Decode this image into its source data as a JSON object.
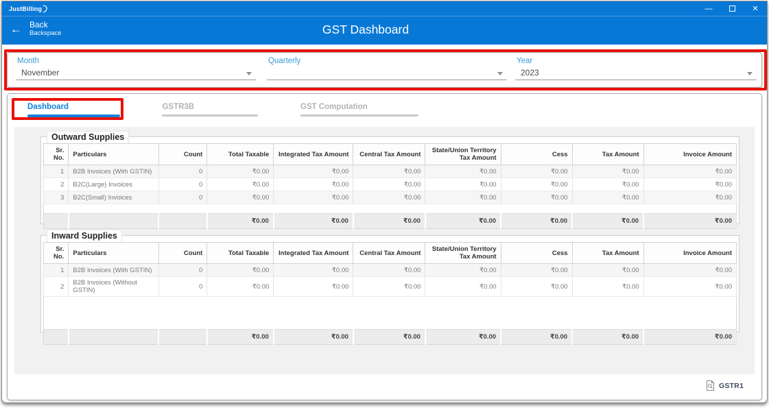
{
  "window": {
    "logo": "JustBilling"
  },
  "icons": {
    "minimize": "—",
    "close": "✕",
    "back_arrow": "←"
  },
  "header": {
    "back_label": "Back",
    "back_shortcut": "Backspace",
    "title": "GST Dashboard"
  },
  "filters": {
    "month_label": "Month",
    "month_value": "November",
    "quarterly_label": "Quarterly",
    "quarterly_value": "",
    "year_label": "Year",
    "year_value": "2023"
  },
  "tabs": [
    {
      "label": "Dashboard",
      "active": true
    },
    {
      "label": "GSTR3B",
      "active": false
    },
    {
      "label": "GST Computation",
      "active": false
    }
  ],
  "table_columns": [
    "Sr. No.",
    "Particulars",
    "Count",
    "Total Taxable",
    "Integrated Tax Amount",
    "Central Tax Amount",
    "State/Union Territory Tax Amount",
    "Cess",
    "Tax Amount",
    "Invoice Amount"
  ],
  "outward_supplies": {
    "title": "Outward Supplies",
    "rows": [
      [
        "1",
        "B2B Invoices (With GSTIN)",
        "0",
        "₹0.00",
        "₹0.00",
        "₹0.00",
        "₹0.00",
        "₹0.00",
        "₹0.00",
        "₹0.00"
      ],
      [
        "2",
        "B2C(Large) Invoices",
        "0",
        "₹0.00",
        "₹0.00",
        "₹0.00",
        "₹0.00",
        "₹0.00",
        "₹0.00",
        "₹0.00"
      ],
      [
        "3",
        "B2C(Small) Invoices",
        "0",
        "₹0.00",
        "₹0.00",
        "₹0.00",
        "₹0.00",
        "₹0.00",
        "₹0.00",
        "₹0.00"
      ]
    ],
    "totals": [
      "",
      "",
      "",
      "₹0.00",
      "₹0.00",
      "₹0.00",
      "₹0.00",
      "₹0.00",
      "₹0.00",
      "₹0.00"
    ]
  },
  "inward_supplies": {
    "title": "Inward Supplies",
    "rows": [
      [
        "1",
        "B2B Invoices (With GSTIN)",
        "0",
        "₹0.00",
        "₹0.00",
        "₹0.00",
        "₹0.00",
        "₹0.00",
        "₹0.00",
        "₹0.00"
      ],
      [
        "2",
        "B2B Invoices (Without GSTIN)",
        "0",
        "₹0.00",
        "₹0.00",
        "₹0.00",
        "₹0.00",
        "₹0.00",
        "₹0.00",
        "₹0.00"
      ]
    ],
    "totals": [
      "",
      "",
      "",
      "₹0.00",
      "₹0.00",
      "₹0.00",
      "₹0.00",
      "₹0.00",
      "₹0.00",
      "₹0.00"
    ]
  },
  "footer": {
    "gstr1_label": "GSTR1"
  },
  "colors": {
    "titlebar_blue": "#0878d6",
    "accent_blue": "#359bd9",
    "active_tab_blue": "#1080d8",
    "annotation_red": "#e81309"
  }
}
